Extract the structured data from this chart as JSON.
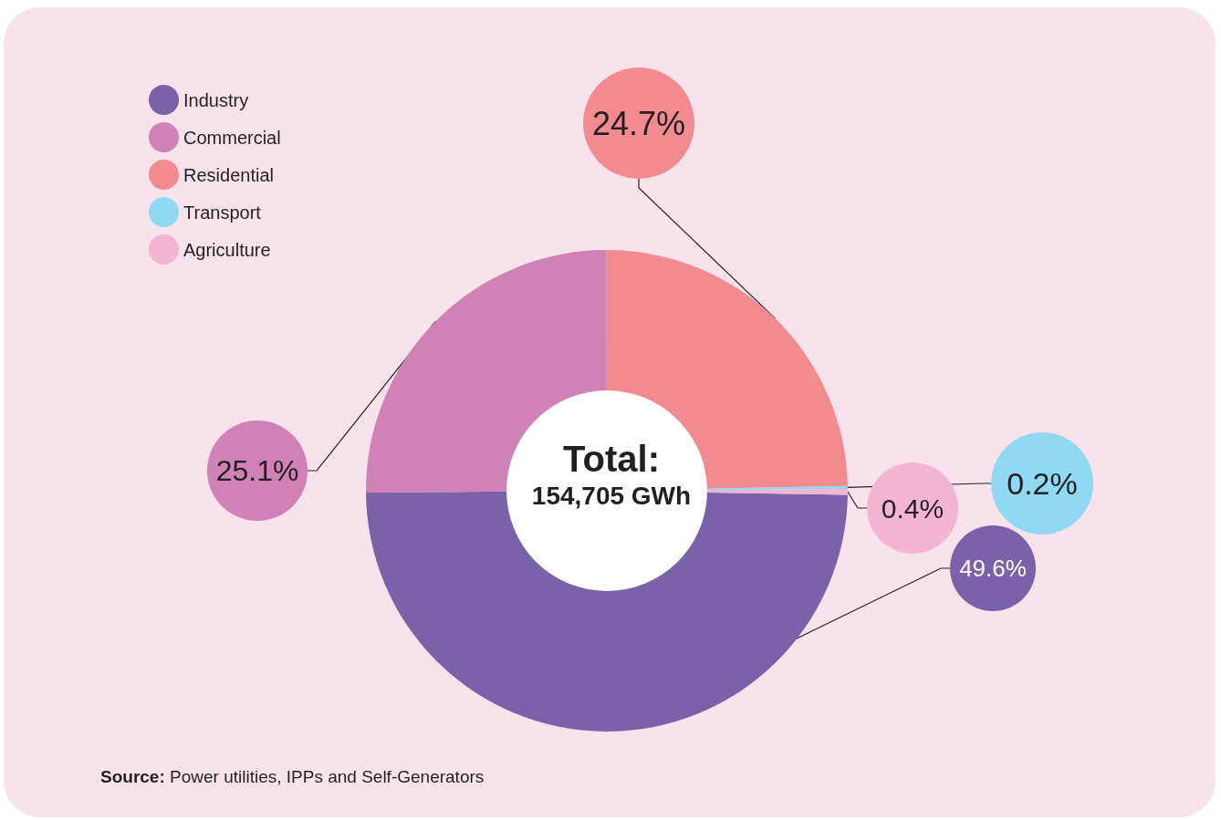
{
  "chart_data": {
    "type": "donut",
    "title": "Total:",
    "subtitle": "154,705 GWh",
    "categories": [
      "Industry",
      "Commercial",
      "Residential",
      "Transport",
      "Agriculture"
    ],
    "values": [
      49.6,
      25.1,
      24.7,
      0.2,
      0.4
    ],
    "colors": [
      "#7a62a9",
      "#d081b6",
      "#f28b90",
      "#8fd9f3",
      "#f3b5d2"
    ],
    "value_labels": [
      "49.6%",
      "25.1%",
      "24.7%",
      "0.2%",
      "0.4%"
    ],
    "legend": "top left",
    "annotations": [
      "Source: Power utilities, IPPs and Self-Generators"
    ]
  }
}
